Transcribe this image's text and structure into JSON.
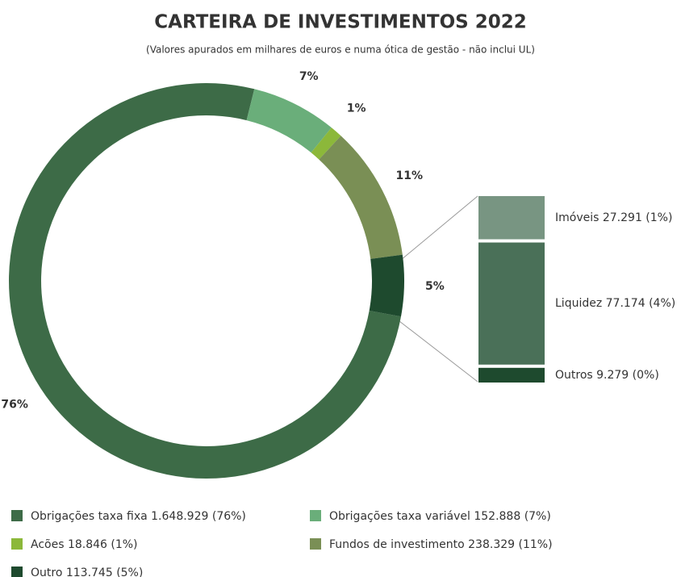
{
  "chart_data": {
    "type": "donut",
    "title": "CARTEIRA DE INVESTIMENTOS 2022",
    "subtitle": "(Valores apurados em milhares de euros e numa ótica de gestão - não inclui UL)",
    "categories": [
      "Obrigações taxa fixa 1.648.929 (76%)",
      "Obrigações taxa variável 152.888 (7%)",
      "Acões 18.846 (1%)",
      "Fundos de investimento 238.329 (11%)",
      "Outro 113.745 (5%)"
    ],
    "values": [
      76,
      7,
      1,
      11,
      5
    ],
    "value_labels": [
      "76%",
      "7%",
      "1%",
      "11%",
      "5%"
    ],
    "colors": [
      "#3d6b47",
      "#6aae7a",
      "#8cb83a",
      "#7a8f55",
      "#1e4a2e"
    ],
    "breakdown": {
      "categories": [
        "Imóveis 27.291 (1%)",
        "Liquidez 77.174 (4%)",
        "Outros 9.279 (0%)"
      ],
      "values": [
        27291,
        77174,
        9279
      ],
      "colors": [
        "#789582",
        "#4a7058",
        "#1e4a2e"
      ]
    }
  }
}
